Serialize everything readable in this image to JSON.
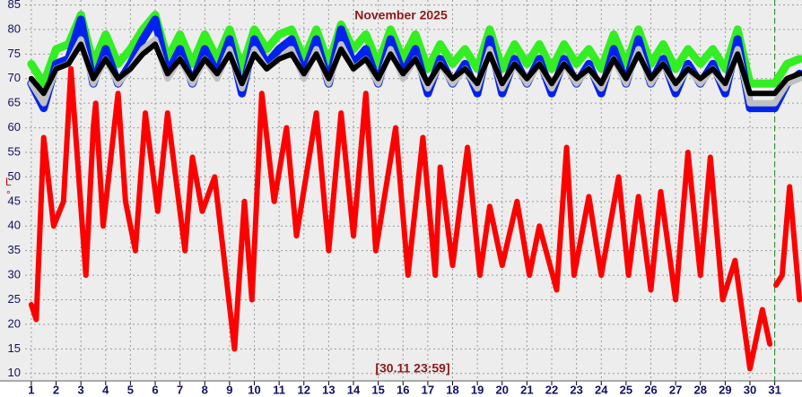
{
  "chart_data": {
    "type": "line",
    "title": "November 2025",
    "annotations": [
      "[30.11 23:59]",
      "L",
      "°"
    ],
    "x": [
      1,
      1.5,
      2,
      2.5,
      3,
      3.5,
      4,
      4.5,
      5,
      5.5,
      6,
      6.5,
      7,
      7.5,
      8,
      8.5,
      9,
      9.5,
      10,
      10.5,
      11,
      11.5,
      12,
      12.5,
      13,
      13.5,
      14,
      14.5,
      15,
      15.5,
      16,
      16.5,
      17,
      17.5,
      18,
      18.5,
      19,
      19.5,
      20,
      20.5,
      21,
      21.5,
      22,
      22.5,
      23,
      23.5,
      24,
      24.5,
      25,
      25.5,
      26,
      26.5,
      27,
      27.5,
      28,
      28.5,
      29,
      29.5,
      30,
      30.5,
      31,
      31.5,
      32
    ],
    "series": [
      {
        "color": "#33ee22",
        "values": [
          73,
          69,
          76,
          77,
          83,
          73,
          79,
          73,
          76,
          80,
          83,
          74,
          79,
          73,
          79,
          74,
          80,
          72,
          80,
          76,
          79,
          80,
          74,
          80,
          73,
          81,
          76,
          79,
          73,
          80,
          74,
          79,
          72,
          77,
          73,
          76,
          72,
          80,
          72,
          77,
          73,
          77,
          72,
          77,
          73,
          76,
          72,
          79,
          73,
          80,
          73,
          77,
          72,
          76,
          73,
          76,
          72,
          80,
          69,
          69,
          69,
          73,
          74
        ]
      },
      {
        "color": "#0022ee",
        "values": [
          69,
          64,
          73,
          74,
          82,
          69,
          76,
          69,
          73,
          78,
          82,
          71,
          76,
          69,
          76,
          71,
          78,
          67,
          78,
          73,
          76,
          78,
          71,
          78,
          69,
          80,
          73,
          76,
          69,
          78,
          71,
          76,
          67,
          74,
          69,
          73,
          67,
          78,
          67,
          74,
          69,
          74,
          67,
          74,
          69,
          73,
          67,
          76,
          69,
          78,
          69,
          74,
          67,
          73,
          69,
          73,
          67,
          78,
          64,
          64,
          64,
          69,
          71
        ]
      },
      {
        "color": "#c0c0c0",
        "values": [
          69,
          65,
          72,
          73,
          78,
          69,
          74,
          69,
          72,
          76,
          78,
          70,
          74,
          69,
          74,
          70,
          76,
          68,
          76,
          72,
          74,
          76,
          70,
          76,
          69,
          77,
          72,
          74,
          69,
          76,
          70,
          74,
          68,
          73,
          69,
          72,
          68,
          76,
          68,
          73,
          69,
          73,
          68,
          73,
          69,
          72,
          68,
          74,
          69,
          76,
          69,
          73,
          68,
          72,
          69,
          72,
          68,
          76,
          65,
          65,
          65,
          69,
          70
        ]
      },
      {
        "color": "#000000",
        "values": [
          70,
          67,
          72,
          73,
          77,
          70,
          74,
          70,
          72,
          75,
          77,
          71,
          74,
          70,
          74,
          71,
          75,
          69,
          75,
          72,
          74,
          75,
          71,
          75,
          70,
          76,
          72,
          74,
          70,
          75,
          71,
          74,
          69,
          73,
          70,
          72,
          69,
          75,
          69,
          73,
          70,
          73,
          69,
          73,
          70,
          72,
          69,
          74,
          70,
          75,
          70,
          73,
          69,
          72,
          70,
          72,
          69,
          75,
          67,
          67,
          67,
          70,
          71
        ]
      },
      {
        "color": "#ff0000",
        "x": [
          1,
          1.2,
          1.5,
          1.9,
          2.3,
          2.6,
          3.2,
          3.5,
          3.6,
          3.9,
          4.5,
          4.8,
          5.2,
          5.6,
          6.1,
          6.5,
          7.2,
          7.5,
          7.9,
          8.4,
          9.2,
          9.6,
          9.9,
          10.3,
          10.8,
          11.3,
          11.7,
          12.5,
          13,
          13.5,
          14,
          14.5,
          14.9,
          15.7,
          16.2,
          16.8,
          17.3,
          17.5,
          18,
          18.6,
          19.1,
          19.5,
          20,
          20.6,
          21.1,
          21.5,
          22.2,
          22.6,
          22.9,
          23.5,
          24,
          24.7,
          25.1,
          25.5,
          26,
          26.4,
          27,
          27.5,
          28,
          28.4,
          28.9,
          29.4,
          30,
          30.5,
          30.8,
          30.9,
          31.05,
          31.3,
          31.6,
          32
        ],
        "values": [
          24,
          21,
          58,
          40,
          45,
          72,
          30,
          60,
          65,
          40,
          67,
          45,
          35,
          63,
          43,
          63,
          35,
          54,
          43,
          50,
          15,
          45,
          25,
          67,
          45,
          60,
          38,
          63,
          35,
          63,
          38,
          67,
          35,
          60,
          30,
          58,
          30,
          52,
          32,
          56,
          30,
          44,
          32,
          45,
          30,
          40,
          27,
          56,
          30,
          46,
          30,
          50,
          30,
          46,
          27,
          47,
          25,
          55,
          30,
          54,
          25,
          33,
          11,
          23,
          16,
          null,
          28,
          30,
          48,
          25
        ]
      }
    ],
    "xlim": [
      0.75,
      32.1
    ],
    "xticks": [
      1,
      2,
      3,
      4,
      5,
      6,
      7,
      8,
      9,
      10,
      11,
      12,
      13,
      14,
      15,
      16,
      17,
      18,
      19,
      20,
      21,
      22,
      23,
      24,
      25,
      26,
      27,
      28,
      29,
      30,
      31
    ],
    "ylim": [
      8.5,
      86
    ],
    "yticks": [
      10,
      15,
      20,
      25,
      30,
      35,
      40,
      45,
      50,
      55,
      60,
      65,
      70,
      75,
      80,
      85
    ],
    "grid": true,
    "marker_x": 31,
    "marker_color": "#228822"
  }
}
